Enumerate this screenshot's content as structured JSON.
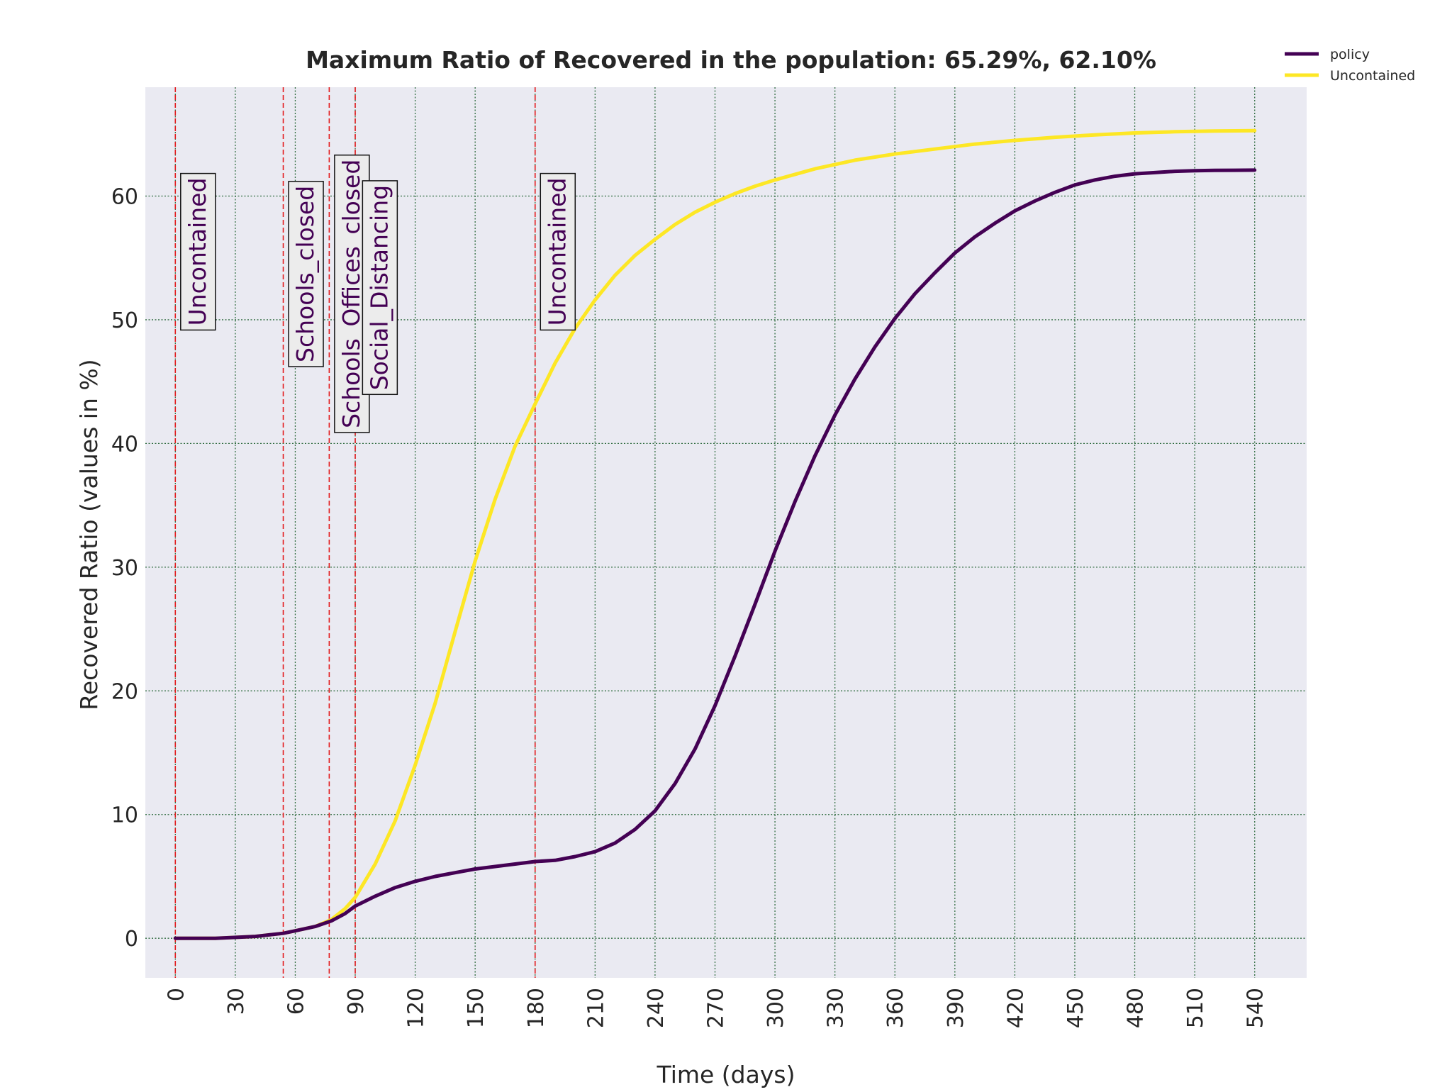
{
  "chart_data": {
    "type": "line",
    "title": "Maximum Ratio of Recovered in the population: 65.29%, 62.10%",
    "xlabel": "Time (days)",
    "ylabel": "Recovered Ratio (values in %)",
    "xlim": [
      -15,
      566
    ],
    "ylim": [
      -3.2,
      68.8
    ],
    "x_ticks": [
      0,
      30,
      60,
      90,
      120,
      150,
      180,
      210,
      240,
      270,
      300,
      330,
      360,
      390,
      420,
      450,
      480,
      510,
      540
    ],
    "x_tick_labels": [
      "0",
      "30",
      "60",
      "90",
      "120",
      "150",
      "180",
      "210",
      "240",
      "270",
      "300",
      "330",
      "360",
      "390",
      "420",
      "450",
      "480",
      "510",
      "540"
    ],
    "y_ticks": [
      0,
      10,
      20,
      30,
      40,
      50,
      60
    ],
    "y_tick_labels": [
      "0",
      "10",
      "20",
      "30",
      "40",
      "50",
      "60"
    ],
    "grid": true,
    "legend_position": "top-right",
    "series": [
      {
        "name": "policy",
        "color": "#440154",
        "x": [
          0,
          20,
          40,
          54,
          60,
          70,
          78,
          85,
          90,
          100,
          110,
          120,
          130,
          140,
          150,
          160,
          170,
          180,
          190,
          200,
          210,
          220,
          230,
          240,
          250,
          260,
          270,
          280,
          290,
          300,
          310,
          320,
          330,
          340,
          350,
          360,
          370,
          380,
          390,
          400,
          410,
          420,
          430,
          440,
          450,
          460,
          470,
          480,
          490,
          500,
          510,
          520,
          530,
          540
        ],
        "y": [
          0,
          0,
          0.15,
          0.4,
          0.6,
          0.95,
          1.4,
          2.0,
          2.6,
          3.4,
          4.1,
          4.6,
          5.0,
          5.3,
          5.6,
          5.8,
          6.0,
          6.2,
          6.3,
          6.6,
          7.0,
          7.7,
          8.8,
          10.3,
          12.5,
          15.3,
          18.8,
          22.8,
          27.0,
          31.3,
          35.3,
          39.0,
          42.3,
          45.2,
          47.8,
          50.1,
          52.1,
          53.8,
          55.4,
          56.7,
          57.8,
          58.8,
          59.6,
          60.3,
          60.9,
          61.3,
          61.6,
          61.8,
          61.9,
          62.0,
          62.05,
          62.08,
          62.09,
          62.1
        ]
      },
      {
        "name": "Uncontained",
        "color": "#fde725",
        "x": [
          0,
          20,
          40,
          54,
          60,
          70,
          78,
          85,
          90,
          100,
          110,
          120,
          130,
          140,
          150,
          160,
          170,
          180,
          190,
          200,
          210,
          220,
          230,
          240,
          250,
          260,
          270,
          280,
          290,
          300,
          320,
          340,
          360,
          380,
          400,
          420,
          440,
          460,
          480,
          500,
          520,
          540
        ],
        "y": [
          0,
          0,
          0.15,
          0.4,
          0.6,
          0.95,
          1.5,
          2.4,
          3.3,
          6.0,
          9.5,
          14.0,
          19.0,
          24.8,
          30.5,
          35.5,
          39.8,
          43.2,
          46.5,
          49.3,
          51.6,
          53.6,
          55.2,
          56.5,
          57.7,
          58.7,
          59.5,
          60.2,
          60.8,
          61.3,
          62.2,
          62.9,
          63.4,
          63.8,
          64.2,
          64.5,
          64.75,
          64.95,
          65.1,
          65.2,
          65.26,
          65.29
        ]
      }
    ],
    "vlines": [
      0,
      54,
      77,
      90,
      180
    ],
    "vline_color": "#e31a1c",
    "annotations": [
      {
        "text": "Uncontained",
        "x": 11,
        "y": 55.5
      },
      {
        "text": "Schools_closed",
        "x": 65,
        "y": 53.7
      },
      {
        "text": "Schools_Offices_closed",
        "x": 88,
        "y": 52.1
      },
      {
        "text": "Social_Distancing",
        "x": 102,
        "y": 52.6
      },
      {
        "text": "Uncontained",
        "x": 191,
        "y": 55.5
      }
    ],
    "colors": {
      "plot_background": "#eaeaf2",
      "grid": "#2e6b3e",
      "annotation_text": "#440154",
      "annotation_box": "#ececec"
    }
  }
}
